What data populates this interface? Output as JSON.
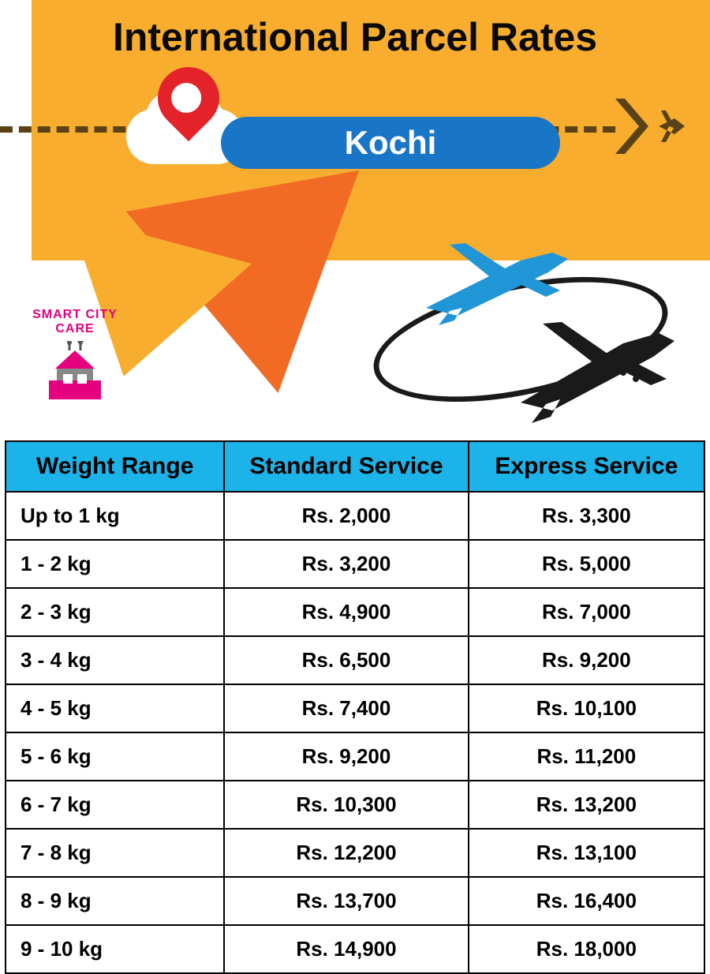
{
  "header": {
    "title": "International Parcel Rates",
    "city": "Kochi",
    "logo_text": "SMART CITY CARE",
    "banner_bg": "#f8ad2e",
    "accent_triangle": "#f26b24",
    "city_badge_bg": "#1976c6",
    "city_badge_text_color": "#ffffff",
    "dash_color": "#5b4216",
    "pin_color": "#e4222a",
    "plane_blue": "#2196d6",
    "plane_dark": "#1a1a1a"
  },
  "table": {
    "header_bg": "#1cb3e8",
    "border_color": "#000000",
    "columns": [
      "Weight Range",
      "Standard Service",
      "Express Service"
    ],
    "rows": [
      {
        "weight": "Up to 1 kg",
        "standard": "Rs. 2,000",
        "express": "Rs. 3,300"
      },
      {
        "weight": "1 - 2 kg",
        "standard": "Rs. 3,200",
        "express": "Rs. 5,000"
      },
      {
        "weight": "2 - 3 kg",
        "standard": "Rs. 4,900",
        "express": "Rs. 7,000"
      },
      {
        "weight": "3 - 4 kg",
        "standard": "Rs. 6,500",
        "express": "Rs. 9,200"
      },
      {
        "weight": "4 - 5 kg",
        "standard": "Rs. 7,400",
        "express": "Rs. 10,100"
      },
      {
        "weight": "5 - 6 kg",
        "standard": "Rs. 9,200",
        "express": "Rs. 11,200"
      },
      {
        "weight": "6 - 7 kg",
        "standard": "Rs. 10,300",
        "express": "Rs. 13,200"
      },
      {
        "weight": "7 - 8 kg",
        "standard": "Rs. 12,200",
        "express": "Rs. 13,100"
      },
      {
        "weight": "8 - 9 kg",
        "standard": "Rs. 13,700",
        "express": "Rs. 16,400"
      },
      {
        "weight": "9 - 10 kg",
        "standard": "Rs. 14,900",
        "express": "Rs. 18,000"
      }
    ]
  }
}
